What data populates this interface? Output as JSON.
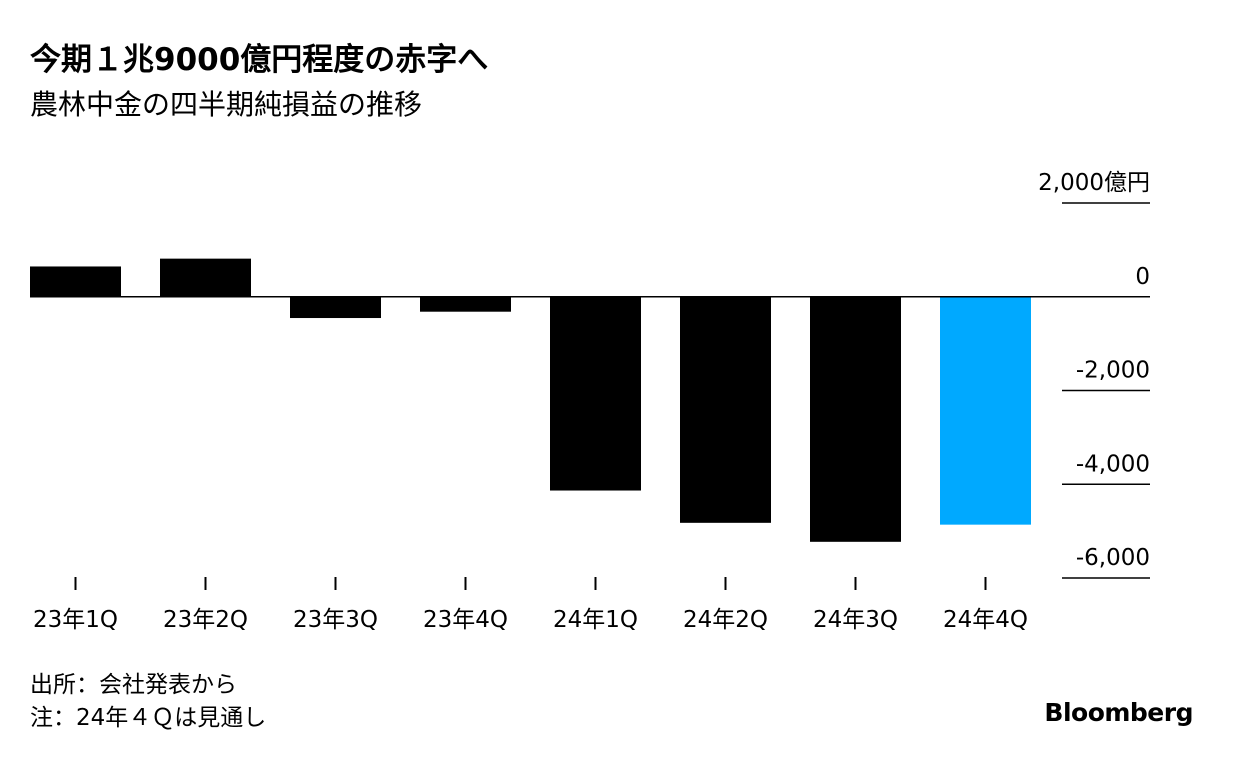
{
  "header": {
    "title": "今期１兆9000億円程度の赤字へ",
    "subtitle": "農林中金の四半期純損益の推移"
  },
  "chart_data": {
    "type": "bar",
    "categories": [
      "23年1Q",
      "23年2Q",
      "23年3Q",
      "23年4Q",
      "24年1Q",
      "24年2Q",
      "24年3Q",
      "24年4Q"
    ],
    "values": [
      646,
      813,
      -454,
      -319,
      -4134,
      -4823,
      -5228,
      -4862
    ],
    "highlight_index": 7,
    "y_ticks": [
      2000,
      0,
      -2000,
      -4000,
      -6000
    ],
    "y_tick_labels": [
      "2,000億円",
      "0",
      "-2,000",
      "-4,000",
      "-6,000"
    ],
    "ylim": [
      -6000,
      2000
    ],
    "y_axis_position": "right",
    "grid": false,
    "colors": {
      "bar": "#000000",
      "highlight": "#00a9ff",
      "axis": "#000000"
    }
  },
  "footer": {
    "source": "出所：会社発表から",
    "note": "注：24年４Ｑは見通し",
    "brand": "Bloomberg"
  }
}
